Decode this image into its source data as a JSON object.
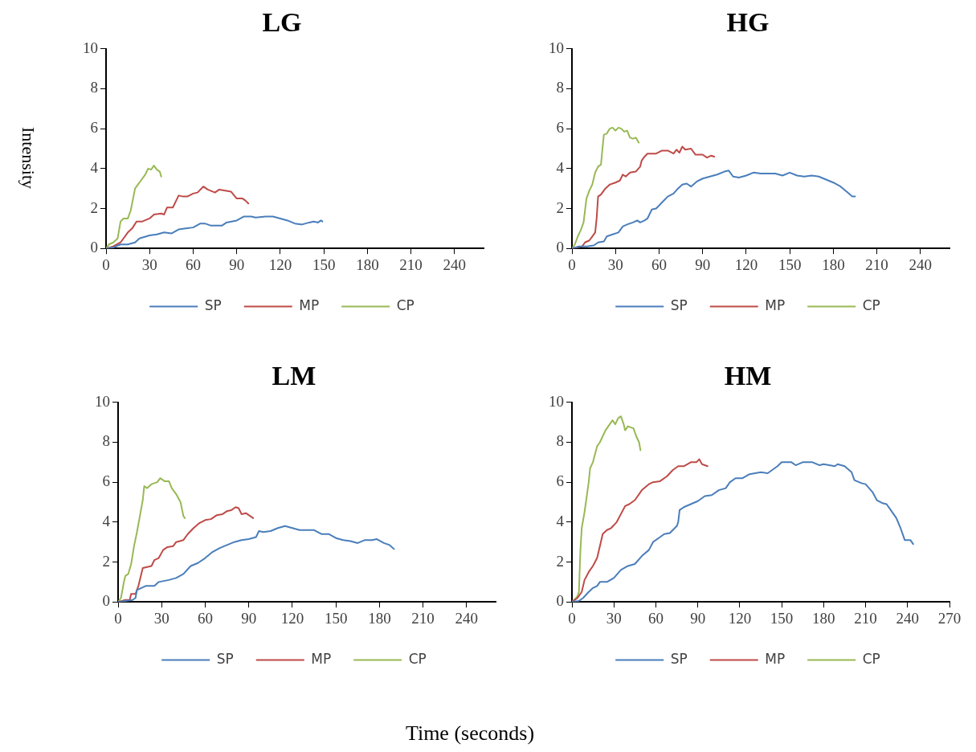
{
  "chart_data": [
    {
      "type": "line",
      "title": "LG",
      "ylabel": "Intensity",
      "xlim": [
        0,
        260
      ],
      "xticks": [
        0,
        30,
        60,
        90,
        120,
        150,
        180,
        210,
        240
      ],
      "ylim": [
        0,
        10
      ],
      "yticks": [
        0,
        2,
        4,
        6,
        8,
        10
      ],
      "grid": false,
      "legend": "bottom",
      "marker": "none",
      "line_style": "solid",
      "series": [
        {
          "name": "SP",
          "color": "#4a7ebb",
          "x": [
            0,
            5,
            10,
            15,
            20,
            23,
            30,
            35,
            40,
            45,
            50,
            55,
            60,
            65,
            68,
            72,
            80,
            83,
            90,
            95,
            100,
            103,
            110,
            115,
            120,
            125,
            130,
            135,
            140,
            143,
            146,
            148,
            149
          ],
          "values": [
            0,
            0.05,
            0.2,
            0.2,
            0.3,
            0.5,
            0.65,
            0.7,
            0.8,
            0.75,
            0.95,
            1.0,
            1.05,
            1.25,
            1.25,
            1.15,
            1.15,
            1.3,
            1.4,
            1.6,
            1.6,
            1.55,
            1.6,
            1.6,
            1.5,
            1.4,
            1.25,
            1.2,
            1.3,
            1.35,
            1.3,
            1.4,
            1.35
          ]
        },
        {
          "name": "MP",
          "color": "#be4b48",
          "x": [
            0,
            5,
            10,
            15,
            18,
            21,
            25,
            30,
            33,
            38,
            40,
            42,
            46,
            50,
            53,
            56,
            60,
            63,
            67,
            70,
            75,
            78,
            82,
            86,
            90,
            94,
            96,
            98
          ],
          "values": [
            0,
            0.1,
            0.3,
            0.8,
            1.0,
            1.35,
            1.35,
            1.5,
            1.7,
            1.75,
            1.7,
            2.05,
            2.05,
            2.65,
            2.6,
            2.6,
            2.75,
            2.8,
            3.1,
            2.95,
            2.8,
            2.95,
            2.9,
            2.85,
            2.5,
            2.5,
            2.4,
            2.25
          ]
        },
        {
          "name": "CP",
          "color": "#98b954",
          "x": [
            0,
            2,
            5,
            8,
            10,
            12,
            15,
            17,
            20,
            22,
            24,
            27,
            29,
            31,
            33,
            35,
            37,
            38
          ],
          "values": [
            0,
            0.2,
            0.3,
            0.5,
            1.35,
            1.5,
            1.5,
            1.9,
            3.0,
            3.2,
            3.4,
            3.7,
            4.0,
            3.95,
            4.15,
            3.95,
            3.85,
            3.6
          ]
        }
      ]
    },
    {
      "type": "line",
      "title": "HG",
      "xlim": [
        0,
        260
      ],
      "xticks": [
        0,
        30,
        60,
        90,
        120,
        150,
        180,
        210,
        240
      ],
      "ylim": [
        0,
        10
      ],
      "yticks": [
        0,
        2,
        4,
        6,
        8,
        10
      ],
      "grid": false,
      "legend": "bottom",
      "marker": "none",
      "line_style": "solid",
      "series": [
        {
          "name": "SP",
          "color": "#4a7ebb",
          "x": [
            0,
            5,
            10,
            15,
            18,
            22,
            24,
            28,
            32,
            35,
            38,
            42,
            45,
            47,
            50,
            52,
            55,
            58,
            62,
            66,
            70,
            73,
            76,
            79,
            82,
            86,
            90,
            95,
            100,
            105,
            108,
            111,
            115,
            120,
            125,
            130,
            140,
            145,
            150,
            155,
            160,
            165,
            170,
            175,
            180,
            185,
            190,
            193,
            195
          ],
          "values": [
            0,
            0.1,
            0.1,
            0.15,
            0.3,
            0.35,
            0.6,
            0.7,
            0.8,
            1.1,
            1.2,
            1.3,
            1.4,
            1.3,
            1.4,
            1.5,
            1.95,
            2.0,
            2.3,
            2.6,
            2.75,
            3.0,
            3.2,
            3.25,
            3.1,
            3.35,
            3.5,
            3.6,
            3.7,
            3.85,
            3.9,
            3.6,
            3.55,
            3.65,
            3.8,
            3.75,
            3.75,
            3.65,
            3.8,
            3.65,
            3.6,
            3.65,
            3.6,
            3.45,
            3.3,
            3.1,
            2.8,
            2.6,
            2.6
          ]
        },
        {
          "name": "MP",
          "color": "#be4b48",
          "x": [
            0,
            3,
            7,
            9,
            12,
            14,
            16,
            17,
            18,
            20,
            23,
            26,
            30,
            33,
            35,
            37,
            40,
            44,
            47,
            48,
            50,
            52,
            58,
            62,
            66,
            70,
            72,
            74,
            76,
            78,
            82,
            85,
            90,
            93,
            96,
            98
          ],
          "values": [
            0,
            0.05,
            0.1,
            0.3,
            0.4,
            0.6,
            0.8,
            1.5,
            2.6,
            2.7,
            3.0,
            3.2,
            3.3,
            3.4,
            3.7,
            3.6,
            3.8,
            3.85,
            4.1,
            4.4,
            4.6,
            4.75,
            4.75,
            4.9,
            4.9,
            4.75,
            4.95,
            4.8,
            5.1,
            4.95,
            5.0,
            4.7,
            4.7,
            4.55,
            4.65,
            4.6
          ]
        },
        {
          "name": "CP",
          "color": "#98b954",
          "x": [
            0,
            2,
            4,
            6,
            8,
            10,
            12,
            14,
            16,
            18,
            20,
            21,
            22,
            24,
            26,
            28,
            30,
            32,
            34,
            36,
            38,
            40,
            42,
            44,
            46
          ],
          "values": [
            0,
            0.2,
            0.6,
            0.9,
            1.3,
            2.5,
            2.9,
            3.2,
            3.8,
            4.1,
            4.2,
            5.0,
            5.7,
            5.75,
            6.0,
            6.05,
            5.9,
            6.05,
            6.0,
            5.85,
            5.9,
            5.55,
            5.5,
            5.55,
            5.3
          ]
        }
      ]
    },
    {
      "type": "line",
      "title": "LM",
      "xlabel": "Time (seconds)",
      "xlim": [
        0,
        260
      ],
      "xticks": [
        0,
        30,
        60,
        90,
        120,
        150,
        180,
        210,
        240
      ],
      "ylim": [
        0,
        10
      ],
      "yticks": [
        0,
        2,
        4,
        6,
        8,
        10
      ],
      "grid": false,
      "legend": "bottom",
      "marker": "none",
      "line_style": "solid",
      "series": [
        {
          "name": "SP",
          "color": "#4a7ebb",
          "x": [
            0,
            5,
            10,
            12,
            13,
            16,
            19,
            25,
            28,
            35,
            40,
            45,
            50,
            55,
            60,
            65,
            70,
            75,
            80,
            85,
            90,
            95,
            97,
            100,
            105,
            110,
            115,
            120,
            125,
            135,
            140,
            145,
            150,
            155,
            160,
            165,
            170,
            175,
            178,
            183,
            187,
            190
          ],
          "values": [
            0,
            0.05,
            0.1,
            0.2,
            0.6,
            0.7,
            0.8,
            0.8,
            1.0,
            1.1,
            1.2,
            1.4,
            1.8,
            1.95,
            2.2,
            2.5,
            2.7,
            2.85,
            3.0,
            3.1,
            3.15,
            3.25,
            3.55,
            3.5,
            3.55,
            3.7,
            3.8,
            3.7,
            3.6,
            3.6,
            3.4,
            3.4,
            3.2,
            3.1,
            3.05,
            2.95,
            3.1,
            3.1,
            3.15,
            2.95,
            2.85,
            2.65
          ]
        },
        {
          "name": "MP",
          "color": "#be4b48",
          "x": [
            0,
            5,
            8,
            9,
            12,
            14,
            17,
            20,
            23,
            25,
            28,
            31,
            34,
            38,
            40,
            45,
            48,
            52,
            56,
            60,
            64,
            68,
            72,
            75,
            78,
            81,
            83,
            85,
            88,
            91,
            93
          ],
          "values": [
            0,
            0.1,
            0.1,
            0.4,
            0.4,
            0.8,
            1.7,
            1.75,
            1.8,
            2.1,
            2.2,
            2.6,
            2.75,
            2.8,
            3.0,
            3.1,
            3.4,
            3.7,
            3.95,
            4.1,
            4.15,
            4.35,
            4.4,
            4.55,
            4.6,
            4.75,
            4.7,
            4.4,
            4.45,
            4.3,
            4.2
          ]
        },
        {
          "name": "CP",
          "color": "#98b954",
          "x": [
            0,
            2,
            4,
            5,
            7,
            9,
            11,
            13,
            15,
            17,
            18,
            20,
            23,
            27,
            29,
            32,
            35,
            37,
            40,
            43,
            45,
            46
          ],
          "values": [
            0,
            0.2,
            1.0,
            1.3,
            1.4,
            1.9,
            2.8,
            3.5,
            4.3,
            5.1,
            5.8,
            5.7,
            5.9,
            6.0,
            6.2,
            6.05,
            6.05,
            5.7,
            5.4,
            5.0,
            4.3,
            4.2
          ]
        }
      ]
    },
    {
      "type": "line",
      "title": "HM",
      "xlim": [
        0,
        270
      ],
      "xticks": [
        0,
        30,
        60,
        90,
        120,
        150,
        180,
        210,
        240,
        270
      ],
      "ylim": [
        0,
        10
      ],
      "yticks": [
        0,
        2,
        4,
        6,
        8,
        10
      ],
      "grid": false,
      "legend": "bottom",
      "marker": "none",
      "line_style": "solid",
      "series": [
        {
          "name": "SP",
          "color": "#4a7ebb",
          "x": [
            0,
            5,
            8,
            12,
            15,
            18,
            20,
            25,
            30,
            35,
            40,
            45,
            50,
            55,
            58,
            62,
            66,
            70,
            75,
            76,
            77,
            80,
            85,
            90,
            95,
            100,
            105,
            110,
            113,
            117,
            122,
            127,
            135,
            140,
            143,
            147,
            150,
            157,
            160,
            165,
            172,
            177,
            180,
            188,
            190,
            195,
            200,
            202,
            207,
            210,
            215,
            218,
            222,
            225,
            228,
            232,
            235,
            238,
            242,
            244
          ],
          "values": [
            0,
            0.05,
            0.2,
            0.5,
            0.7,
            0.8,
            1.0,
            1.0,
            1.2,
            1.6,
            1.8,
            1.9,
            2.3,
            2.6,
            3.0,
            3.2,
            3.4,
            3.45,
            3.8,
            4.0,
            4.6,
            4.75,
            4.9,
            5.05,
            5.3,
            5.35,
            5.6,
            5.7,
            6.0,
            6.2,
            6.2,
            6.4,
            6.5,
            6.45,
            6.6,
            6.8,
            7.0,
            7.0,
            6.85,
            7.0,
            7.0,
            6.85,
            6.9,
            6.8,
            6.9,
            6.8,
            6.5,
            6.1,
            5.95,
            5.9,
            5.5,
            5.1,
            4.95,
            4.9,
            4.6,
            4.2,
            3.7,
            3.1,
            3.1,
            2.9
          ]
        },
        {
          "name": "MP",
          "color": "#be4b48",
          "x": [
            0,
            4,
            7,
            9,
            12,
            15,
            18,
            20,
            22,
            25,
            28,
            32,
            35,
            38,
            41,
            45,
            50,
            55,
            58,
            63,
            68,
            72,
            76,
            80,
            85,
            89,
            91,
            93,
            95,
            97
          ],
          "values": [
            0,
            0.2,
            0.5,
            1.1,
            1.5,
            1.8,
            2.2,
            2.8,
            3.4,
            3.6,
            3.7,
            4.0,
            4.4,
            4.8,
            4.9,
            5.1,
            5.6,
            5.9,
            6.0,
            6.05,
            6.3,
            6.6,
            6.8,
            6.8,
            7.0,
            7.0,
            7.15,
            6.9,
            6.85,
            6.8
          ]
        },
        {
          "name": "CP",
          "color": "#98b954",
          "x": [
            0,
            3,
            4,
            5,
            6,
            7,
            9,
            10,
            12,
            13,
            15,
            18,
            20,
            22,
            24,
            27,
            29,
            31,
            33,
            35,
            37,
            38,
            40,
            44,
            46,
            48,
            49
          ],
          "values": [
            0,
            0.2,
            0.3,
            0.5,
            2.5,
            3.7,
            4.5,
            5.0,
            6.0,
            6.7,
            7.0,
            7.8,
            8.0,
            8.3,
            8.6,
            8.9,
            9.1,
            8.9,
            9.2,
            9.3,
            8.9,
            8.6,
            8.8,
            8.7,
            8.3,
            8.0,
            7.6
          ]
        }
      ]
    }
  ]
}
